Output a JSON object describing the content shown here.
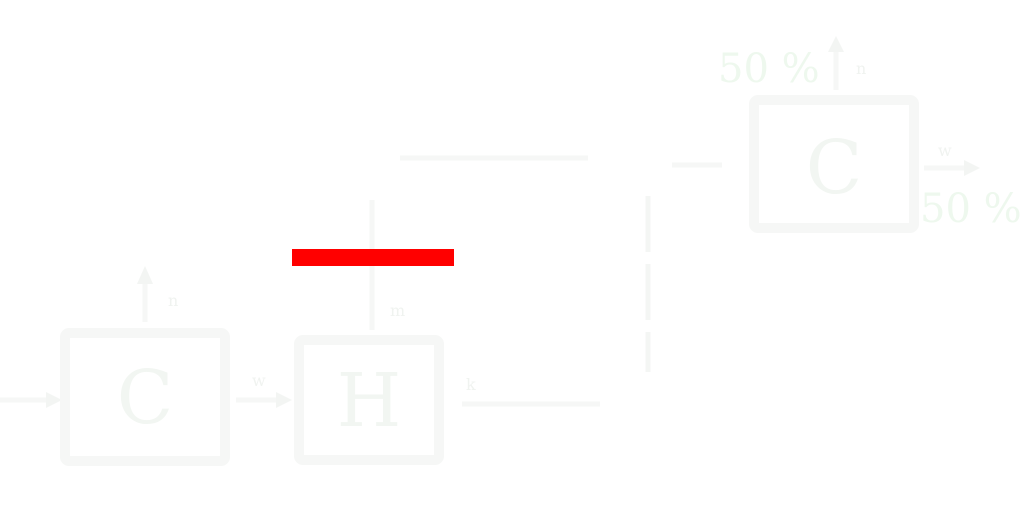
{
  "blocks": {
    "c_left": "C",
    "h_mid": "H",
    "c_right": "C"
  },
  "labels": {
    "percent_top": "50 %",
    "percent_right": "50 %",
    "sub_c_left": "n",
    "sub_h_mid": "m",
    "sub_c_right": "n",
    "between_c_h": "w",
    "after_h": "k",
    "right_of_c": "w"
  },
  "colors": {
    "highlight": "#ff0000",
    "background": "#ffffff",
    "faint_stroke": "#f6f7f6"
  }
}
